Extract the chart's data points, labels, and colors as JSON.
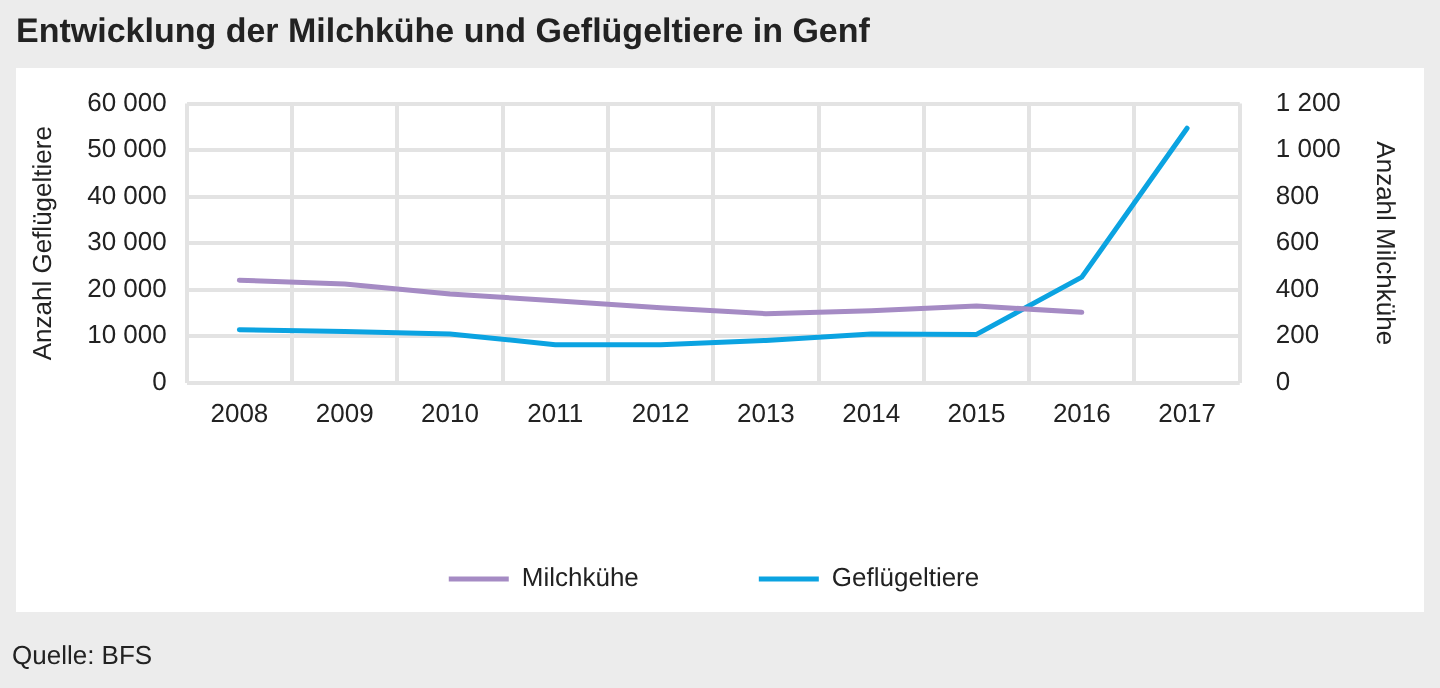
{
  "chart_data": {
    "type": "line",
    "title": "Entwicklung der Milchkühe und Geflügeltiere in Genf",
    "categories": [
      "2008",
      "2009",
      "2010",
      "2011",
      "2012",
      "2013",
      "2014",
      "2015",
      "2016",
      "2017"
    ],
    "series": [
      {
        "name": "Milchkühe",
        "color": "#a58bc4",
        "axis": "y2",
        "values": [
          441,
          425,
          382,
          353,
          323,
          297,
          310,
          330,
          303,
          null
        ]
      },
      {
        "name": "Geflügeltiere",
        "color": "#0ba3e1",
        "values": [
          11400,
          11000,
          10500,
          8200,
          8200,
          9100,
          10500,
          10400,
          22700,
          54700
        ]
      }
    ],
    "ylabel": "Anzahl Geflügeltiere",
    "y2label": "Anzahl Milchkühe",
    "ylim": [
      0,
      60000
    ],
    "yticks": [
      {
        "value": 0,
        "label": "0"
      },
      {
        "value": 10000,
        "label": "10 000"
      },
      {
        "value": 20000,
        "label": "20 000"
      },
      {
        "value": 30000,
        "label": "30 000"
      },
      {
        "value": 40000,
        "label": "40 000"
      },
      {
        "value": 50000,
        "label": "50 000"
      },
      {
        "value": 60000,
        "label": "60 000"
      }
    ],
    "y2lim": [
      0,
      1200
    ],
    "y2ticks": [
      {
        "value": 0,
        "label": "0"
      },
      {
        "value": 200,
        "label": "200"
      },
      {
        "value": 400,
        "label": "400"
      },
      {
        "value": 600,
        "label": "600"
      },
      {
        "value": 800,
        "label": "800"
      },
      {
        "value": 1000,
        "label": "1 000"
      },
      {
        "value": 1200,
        "label": "1 200"
      }
    ],
    "grid": true,
    "legend": "bottom",
    "marker": "none",
    "line_style": "solid",
    "annotations": [
      "Quelle: BFS"
    ]
  }
}
